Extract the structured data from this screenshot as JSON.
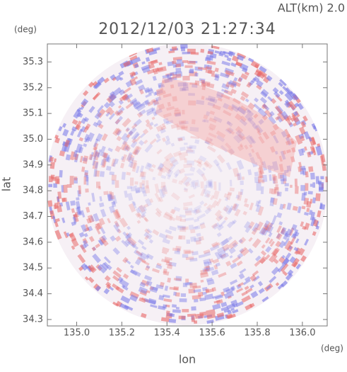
{
  "chart_data": {
    "type": "radar-image",
    "title": "2012/12/03 21:27:34",
    "subtitle": "ALT(km)  2.0",
    "xlabel": "lon",
    "ylabel": "lat",
    "xunit": "(deg)",
    "yunit": "(deg)",
    "xlim": [
      134.87,
      136.11
    ],
    "ylim": [
      34.275,
      35.37
    ],
    "xticks": [
      {
        "value": 135,
        "label": "135.0"
      },
      135.2,
      135.4,
      135.6,
      135.8,
      {
        "value": 136,
        "label": "136.0"
      }
    ],
    "yticks": [
      34.3,
      34.4,
      34.5,
      34.6,
      34.7,
      34.8,
      34.9,
      {
        "value": 35,
        "label": "35.0"
      },
      35.1,
      35.2,
      35.3
    ]
  }
}
